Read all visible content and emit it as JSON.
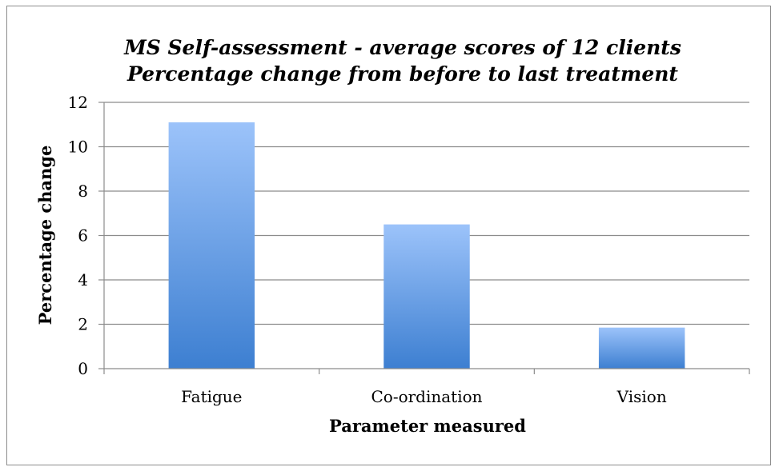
{
  "chart_data": {
    "type": "bar",
    "title": "MS  Self-assessment - average scores of 12 clients",
    "subtitle": "Percentage  change from before to last treatment",
    "xlabel": "Parameter measured",
    "ylabel": "Percentage change",
    "categories": [
      "Fatigue",
      "Co-ordination",
      "Vision"
    ],
    "values": [
      11.1,
      6.5,
      1.85
    ],
    "ylim": [
      0,
      12
    ],
    "yticks": [
      0,
      2,
      4,
      6,
      8,
      10,
      12
    ],
    "grid": true,
    "legend": "none",
    "colors": {
      "bar_top": "#9cc3fa",
      "bar_bottom": "#3d7fd1",
      "grid": "#8c8c8c"
    }
  }
}
